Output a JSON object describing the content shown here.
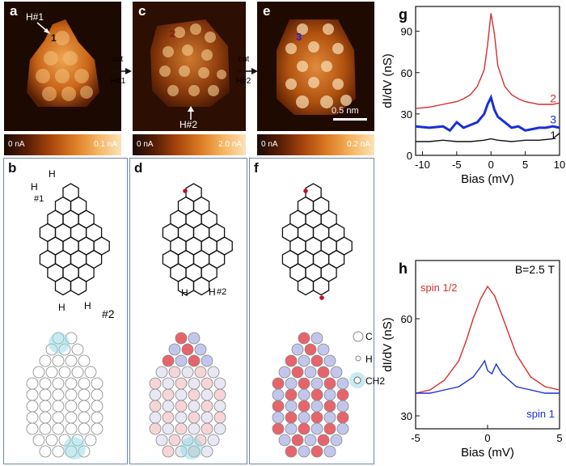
{
  "panels": {
    "a": {
      "label": "a",
      "annot_h": "H#1",
      "annot_site": "1",
      "cbar_min": "0 nA",
      "cbar_max": "0.1 nA"
    },
    "c": {
      "label": "c",
      "annot_site": "2",
      "annot_h": "H#2",
      "cbar_min": "0 nA",
      "cbar_max": "2.0 nA"
    },
    "e": {
      "label": "e",
      "annot_site": "3",
      "scalebar": "0.5 nm",
      "cbar_min": "0 nA",
      "cbar_max": "0.2 nA"
    },
    "b": {
      "label": "b",
      "h_labels": [
        "H",
        "H",
        "H",
        "H"
      ],
      "tag1": "#1",
      "tag2": "#2"
    },
    "d": {
      "label": "d",
      "h_labels": [
        "H",
        "H"
      ],
      "tag2": "#2"
    },
    "f": {
      "label": "f"
    },
    "legend": {
      "c": "C",
      "h": "H",
      "ch2": "CH2"
    },
    "arrow1": {
      "top": "cut",
      "bottom": "H#1"
    },
    "arrow2": {
      "top": "cut",
      "bottom": "H#2"
    }
  },
  "colors": {
    "red_curve": "#d22f2f",
    "blue_curve": "#1a2fd6",
    "black_curve": "#111111",
    "atom_red": "#e8646c",
    "atom_blue": "#c3c6ec"
  },
  "chart_data": [
    {
      "id": "g",
      "label": "g",
      "type": "line",
      "xlabel": "Bias (mV)",
      "ylabel": "dI/dV (nS)",
      "xlim": [
        -11,
        10
      ],
      "ylim": [
        0,
        108
      ],
      "xticks": [
        "-10",
        "-5",
        "0",
        "5",
        "10"
      ],
      "yticks": [
        "0",
        "30",
        "60",
        "90"
      ],
      "series": [
        {
          "name": "2",
          "color": "#d22f2f",
          "x": [
            -11,
            -9,
            -7,
            -5,
            -4,
            -3,
            -2,
            -1,
            -0.5,
            0,
            0.5,
            1,
            2,
            3,
            4,
            5,
            6,
            7,
            8,
            9,
            10
          ],
          "values": [
            34,
            35,
            37,
            39,
            41,
            44,
            50,
            62,
            80,
            103,
            88,
            65,
            50,
            44,
            41,
            39,
            38,
            37,
            37,
            37,
            38
          ]
        },
        {
          "name": "3",
          "color": "#1a2fd6",
          "x": [
            -11,
            -9,
            -7,
            -6,
            -5,
            -4,
            -3,
            -2,
            -1,
            -0.5,
            0,
            0.5,
            1,
            2,
            3,
            4,
            5,
            6,
            7,
            8,
            9,
            10
          ],
          "values": [
            21,
            20,
            21,
            18,
            24,
            20,
            22,
            24,
            30,
            37,
            42,
            33,
            28,
            24,
            20,
            21,
            18,
            19,
            20,
            20,
            21,
            20
          ]
        },
        {
          "name": "1",
          "color": "#111111",
          "x": [
            -11,
            -9,
            -7,
            -5,
            -3,
            -1,
            0,
            1,
            3,
            5,
            7,
            9,
            10
          ],
          "values": [
            10,
            10,
            11,
            10,
            10,
            11,
            12,
            11,
            10,
            11,
            11,
            12,
            16
          ]
        }
      ]
    },
    {
      "id": "h",
      "label": "h",
      "type": "line",
      "xlabel": "Bias (mV)",
      "ylabel": "dI/dV (nS)",
      "xlim": [
        -5,
        5
      ],
      "ylim": [
        26,
        78
      ],
      "xticks": [
        "-5",
        "0",
        "5"
      ],
      "yticks": [
        "30",
        "60"
      ],
      "annotation": "B=2.5 T",
      "series": [
        {
          "name": "spin 1/2",
          "color": "#d22f2f",
          "x": [
            -5,
            -4,
            -3,
            -2,
            -1.5,
            -1,
            -0.5,
            0,
            0.5,
            1,
            1.5,
            2,
            3,
            4,
            5
          ],
          "values": [
            37,
            38,
            41,
            47,
            53,
            60,
            66,
            70,
            67,
            61,
            55,
            49,
            42,
            39,
            38
          ]
        },
        {
          "name": "spin 1",
          "color": "#1a2fd6",
          "x": [
            -5,
            -4,
            -3,
            -2,
            -1,
            -0.5,
            -0.2,
            0,
            0.3,
            0.6,
            1,
            2,
            3,
            4,
            5
          ],
          "values": [
            37,
            37,
            38,
            39,
            42,
            45,
            47,
            44,
            43,
            46,
            43,
            39,
            38,
            37,
            37
          ]
        }
      ]
    }
  ]
}
